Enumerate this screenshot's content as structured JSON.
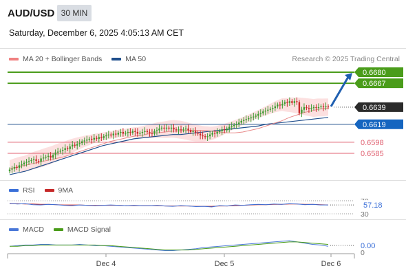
{
  "header": {
    "symbol": "AUD/USD",
    "timeframe": "30 MIN",
    "datetime": "Saturday, December 6, 2025 4:05:13 AM CET"
  },
  "legend": {
    "ma20": "MA 20 + Bollinger Bands",
    "ma50": "MA 50",
    "credit": "Research © 2025 Trading Central",
    "rsi": "RSI",
    "rsi_ma": "9MA",
    "macd": "MACD",
    "macd_signal": "MACD Signal"
  },
  "colors": {
    "ma20": "#f08080",
    "ma50": "#1f4e8c",
    "resistance": "#4a9c1a",
    "pivot": "#1f4e8c",
    "support": "#e06070",
    "current_tag": "#2b2b2b",
    "pivot_tag": "#1565c0",
    "arrow": "#1f5fb0",
    "candle_up": "#3c9a2f",
    "candle_down": "#c62828",
    "bollinger_fill": "#fbd6d6",
    "rsi_line": "#3a6fd8",
    "rsi_ma_line": "#c62828",
    "macd_line": "#4a78d8",
    "macd_signal_line": "#4a9c1a"
  },
  "chart_data": [
    {
      "type": "candlestick",
      "title": "AUD/USD 30 MIN",
      "x_ticks": [
        "Dec 4",
        "Dec 5",
        "Dec 6"
      ],
      "ylim": [
        0.657,
        0.669
      ],
      "levels": [
        {
          "value": 0.668,
          "label": "0.6680",
          "kind": "resistance"
        },
        {
          "value": 0.6667,
          "label": "0.6667",
          "kind": "resistance"
        },
        {
          "value": 0.6639,
          "label": "0.6639",
          "kind": "current"
        },
        {
          "value": 0.6619,
          "label": "0.6619",
          "kind": "pivot"
        },
        {
          "value": 0.6598,
          "label": "0.6598",
          "kind": "support"
        },
        {
          "value": 0.6585,
          "label": "0.6585",
          "kind": "support"
        }
      ],
      "close_series": [
        0.6566,
        0.6567,
        0.6569,
        0.6568,
        0.6571,
        0.6572,
        0.6574,
        0.6575,
        0.6576,
        0.6577,
        0.6578,
        0.6576,
        0.6575,
        0.6579,
        0.658,
        0.6581,
        0.6582,
        0.658,
        0.6583,
        0.6586,
        0.6587,
        0.6588,
        0.6589,
        0.6591,
        0.659,
        0.6593,
        0.6595,
        0.6594,
        0.6596,
        0.6597,
        0.6599,
        0.66,
        0.6601,
        0.6602,
        0.6601,
        0.6603,
        0.6602,
        0.6604,
        0.6603,
        0.6605,
        0.6606,
        0.6607,
        0.6606,
        0.6608,
        0.6607,
        0.6609,
        0.661,
        0.6608,
        0.6609,
        0.661,
        0.6609,
        0.6611,
        0.661,
        0.6608,
        0.6609,
        0.661,
        0.6611,
        0.661,
        0.6609,
        0.6608,
        0.6611,
        0.6612,
        0.6614,
        0.6615,
        0.6614,
        0.6615,
        0.6614,
        0.6615,
        0.6613,
        0.6612,
        0.6613,
        0.6612,
        0.6613,
        0.6614,
        0.6612,
        0.661,
        0.6611,
        0.6609,
        0.6608,
        0.6606,
        0.6605,
        0.6604,
        0.6605,
        0.6607,
        0.6609,
        0.6608,
        0.661,
        0.6611,
        0.6613,
        0.6612,
        0.6614,
        0.6616,
        0.6617,
        0.6618,
        0.6619,
        0.6621,
        0.6623,
        0.6624,
        0.6625,
        0.6626,
        0.6627,
        0.6628,
        0.6629,
        0.6631,
        0.6632,
        0.6634,
        0.6635,
        0.6636,
        0.6637,
        0.6638,
        0.664,
        0.6642,
        0.6641,
        0.6643,
        0.6645,
        0.6644,
        0.6646,
        0.6644,
        0.6646,
        0.6645,
        0.6632,
        0.6636,
        0.6639,
        0.6638,
        0.6637,
        0.6638,
        0.6639,
        0.6638,
        0.6639,
        0.664,
        0.6639,
        0.664,
        0.6639
      ],
      "ma20": [
        0.6567,
        0.6569,
        0.6571,
        0.6573,
        0.6575,
        0.6577,
        0.6579,
        0.6581,
        0.6584,
        0.6587,
        0.659,
        0.6593,
        0.6596,
        0.6599,
        0.6601,
        0.6603,
        0.6605,
        0.6606,
        0.6608,
        0.6609,
        0.661,
        0.6611,
        0.6611,
        0.6612,
        0.6612,
        0.6612,
        0.6611,
        0.661,
        0.6609,
        0.6609,
        0.661,
        0.6612,
        0.6614,
        0.6617,
        0.662,
        0.6623,
        0.6627,
        0.663,
        0.6633,
        0.6635,
        0.6637,
        0.6638
      ],
      "ma50": [
        0.656,
        0.6562,
        0.6564,
        0.6567,
        0.657,
        0.6573,
        0.6576,
        0.6579,
        0.6582,
        0.6585,
        0.6588,
        0.6591,
        0.6594,
        0.6596,
        0.6598,
        0.66,
        0.6602,
        0.6603,
        0.6604,
        0.6605,
        0.6606,
        0.6607,
        0.6607,
        0.6608,
        0.6609,
        0.661,
        0.6611,
        0.6612,
        0.6613,
        0.6614,
        0.6615,
        0.6616,
        0.6617,
        0.6619,
        0.662,
        0.6621,
        0.6622,
        0.6623,
        0.6624,
        0.6625,
        0.6626,
        0.6627
      ],
      "projection": {
        "from": 0.6639,
        "to": 0.668
      }
    },
    {
      "type": "line",
      "title": "RSI",
      "ylim": [
        30,
        70
      ],
      "y_ticks": [
        "70",
        "30"
      ],
      "last_value_label": "57.18",
      "series": [
        {
          "name": "RSI",
          "values": [
            62,
            60,
            61,
            58,
            57,
            59,
            58,
            56,
            55,
            57,
            56,
            55,
            56,
            57,
            56,
            55,
            56,
            55,
            55,
            56,
            54,
            53,
            55,
            54,
            52,
            53,
            51,
            55,
            54,
            57,
            56,
            58,
            59,
            58,
            60,
            59,
            61,
            60,
            58,
            59,
            57,
            57
          ]
        },
        {
          "name": "9MA",
          "values": [
            61,
            61,
            60,
            60,
            59,
            59,
            58,
            57,
            57,
            57,
            56,
            56,
            56,
            56,
            56,
            55,
            55,
            55,
            55,
            55,
            54,
            54,
            54,
            54,
            53,
            53,
            53,
            54,
            54,
            55,
            56,
            57,
            58,
            58,
            59,
            59,
            60,
            60,
            59,
            59,
            58,
            57
          ]
        }
      ]
    },
    {
      "type": "line",
      "title": "MACD",
      "y_ticks": [
        "0"
      ],
      "last_value_label": "0.00",
      "series": [
        {
          "name": "MACD",
          "values": [
            0.0002,
            0.0003,
            0.0004,
            0.0004,
            0.0005,
            0.0005,
            0.0004,
            0.0004,
            0.0004,
            0.0005,
            0.0004,
            0.0003,
            0.0003,
            0.0002,
            0.0001,
            0.0,
            -0.0001,
            -0.0002,
            -0.0003,
            -0.0004,
            -0.0005,
            -0.0005,
            -0.0004,
            -0.0003,
            -0.0002,
            0.0,
            0.0001,
            0.0002,
            0.0003,
            0.0004,
            0.0005,
            0.0006,
            0.0007,
            0.0008,
            0.0009,
            0.001,
            0.0011,
            0.0009,
            0.0007,
            0.0005,
            0.0004,
            0.0002
          ]
        },
        {
          "name": "MACD Signal",
          "values": [
            0.0002,
            0.0002,
            0.0003,
            0.0003,
            0.0004,
            0.0004,
            0.0004,
            0.0004,
            0.0004,
            0.0004,
            0.0004,
            0.0004,
            0.0003,
            0.0003,
            0.0002,
            0.0001,
            0.0,
            -0.0001,
            -0.0002,
            -0.0003,
            -0.0004,
            -0.0004,
            -0.0004,
            -0.0004,
            -0.0003,
            -0.0002,
            -0.0001,
            0.0,
            0.0001,
            0.0002,
            0.0003,
            0.0004,
            0.0005,
            0.0006,
            0.0007,
            0.0008,
            0.0009,
            0.0009,
            0.0008,
            0.0007,
            0.0006,
            0.0005
          ]
        }
      ]
    }
  ]
}
